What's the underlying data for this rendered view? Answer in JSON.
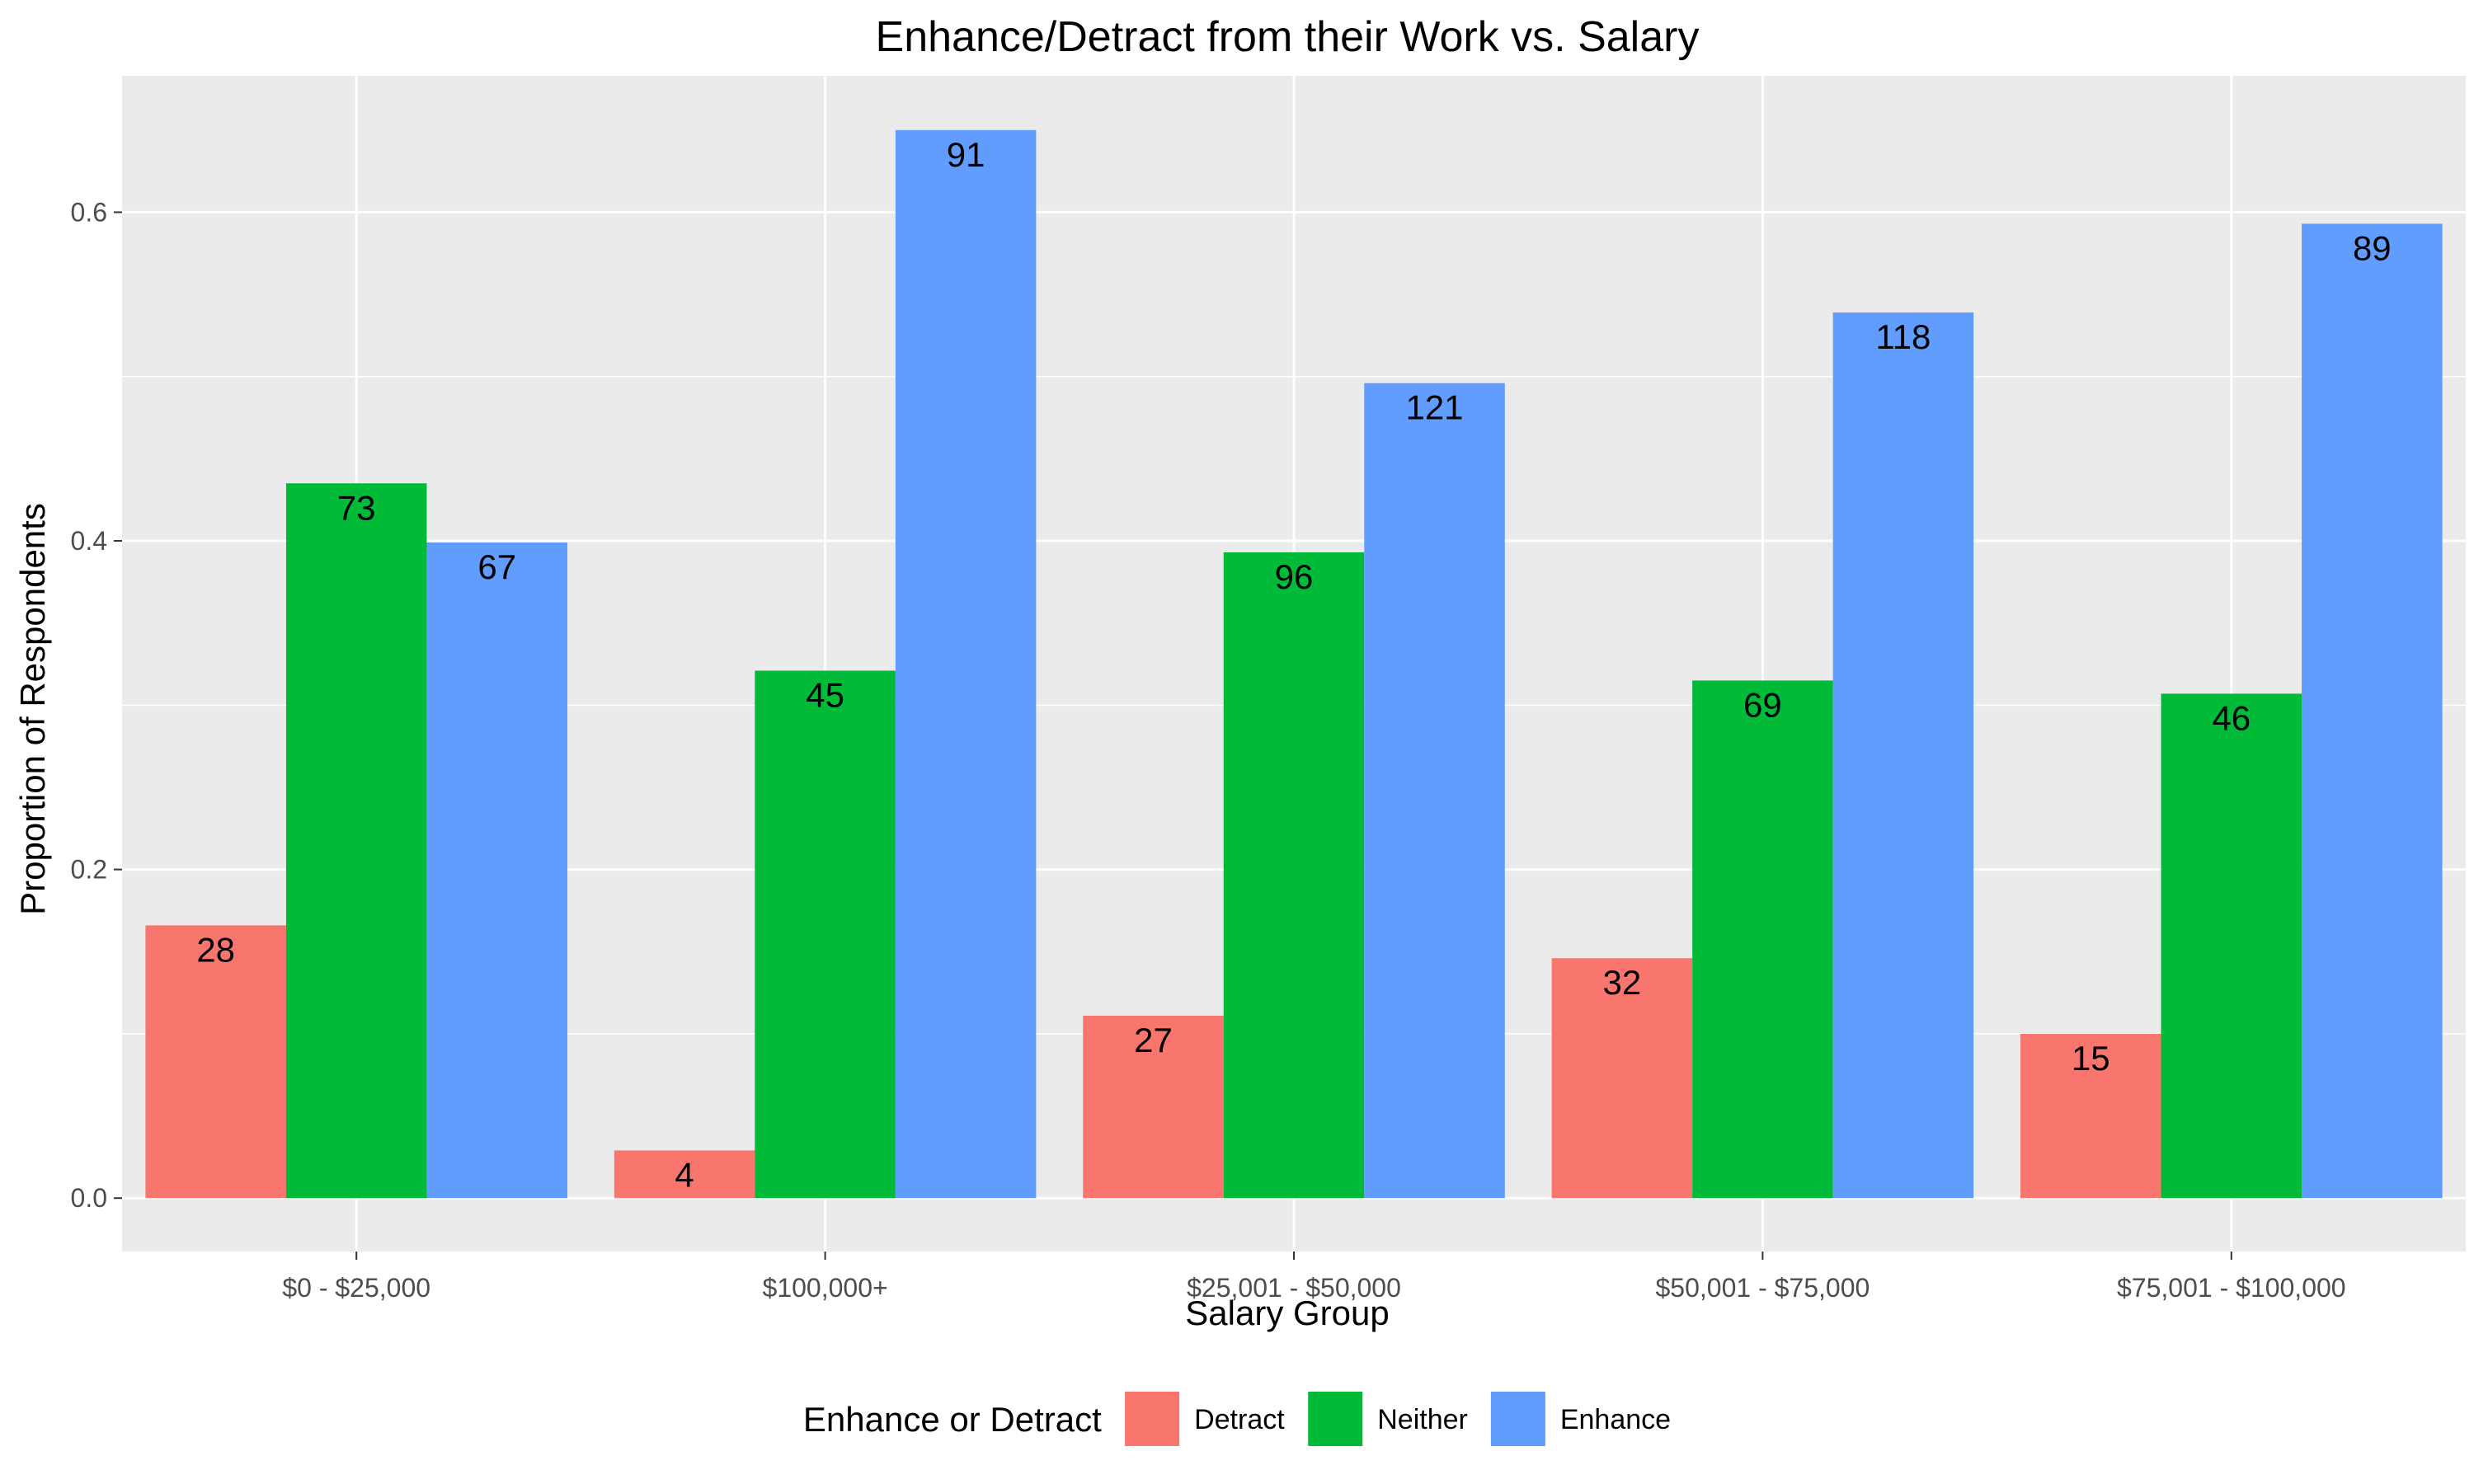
{
  "chart_data": {
    "type": "bar",
    "title": "Enhance/Detract from their Work vs. Salary",
    "xlabel": "Salary Group",
    "ylabel": "Proportion of Respondents",
    "categories": [
      "$0 - $25,000",
      "$100,000+",
      "$25,001 - $50,000",
      "$50,001 - $75,000",
      "$75,001 - $100,000"
    ],
    "series": [
      {
        "name": "Detract",
        "color": "#F8766D",
        "values": [
          0.166,
          0.029,
          0.111,
          0.146,
          0.1
        ],
        "labels": [
          "28",
          "4",
          "27",
          "32",
          "15"
        ]
      },
      {
        "name": "Neither",
        "color": "#00BA38",
        "values": [
          0.435,
          0.321,
          0.393,
          0.315,
          0.307
        ],
        "labels": [
          "73",
          "45",
          "96",
          "69",
          "46"
        ]
      },
      {
        "name": "Enhance",
        "color": "#619CFF",
        "values": [
          0.399,
          0.65,
          0.496,
          0.539,
          0.593
        ],
        "labels": [
          "67",
          "91",
          "121",
          "118",
          "89"
        ]
      }
    ],
    "ylim": [
      -0.0325,
      0.683
    ],
    "yticks": [
      0.0,
      0.2,
      0.4,
      0.6
    ],
    "ytick_labels": [
      "0.0",
      "0.2",
      "0.4",
      "0.6"
    ],
    "grid": true,
    "legend": {
      "title": "Enhance or Detract",
      "position": "bottom"
    },
    "panel_color": "#EBEBEB"
  }
}
